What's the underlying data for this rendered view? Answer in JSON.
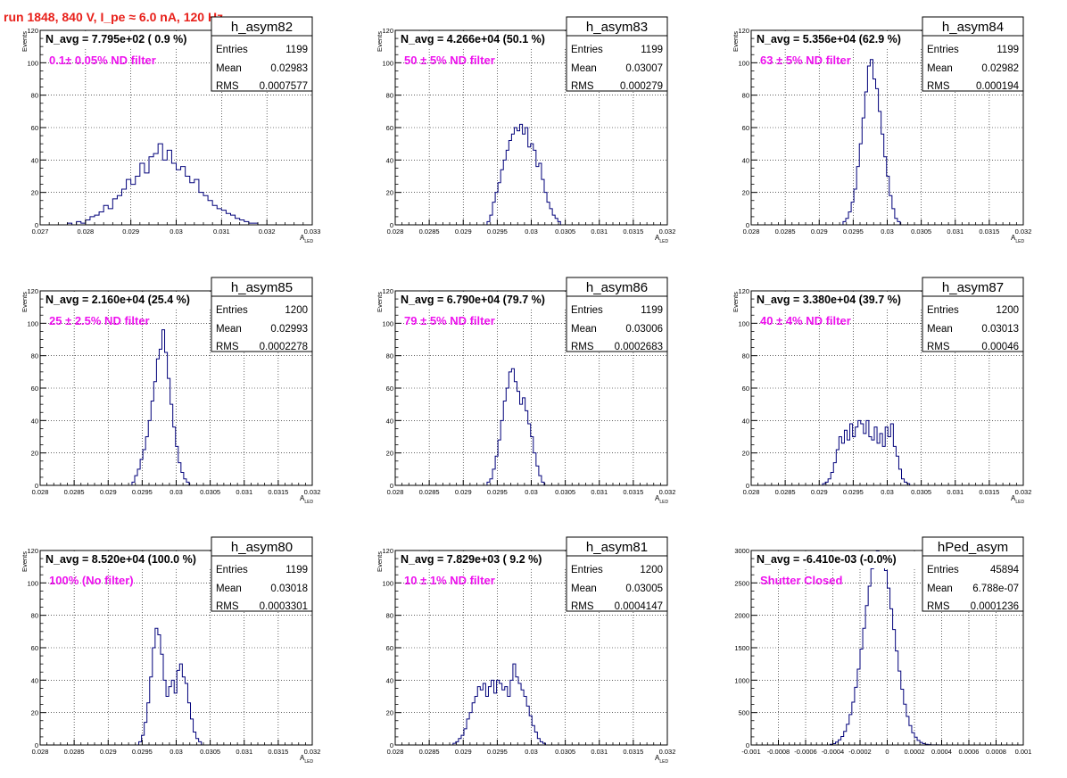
{
  "page_title": "run 1848,   840 V, I_pe ≈ 6.0 nA, 120 Hz",
  "colors": {
    "title": "#e8201a",
    "annotation": "#ee11ee",
    "histogram": "#00007a",
    "grid": "#000000",
    "frame": "#000000"
  },
  "stat_labels": {
    "entries": "Entries",
    "mean": "Mean",
    "rms": "RMS"
  },
  "chart_data": [
    {
      "type": "histogram",
      "name": "h_asym82",
      "navg": "N_avg = 7.795e+02 ( 0.9 %)",
      "annotation": "0.1± 0.05% ND filter",
      "stats": {
        "entries": "1199",
        "mean": "0.02983",
        "rms": "0.0007577"
      },
      "ylabel": "Events",
      "xlabel": "A",
      "xlabel_sub": "LED",
      "xlim": [
        0.027,
        0.033
      ],
      "ylim": [
        0,
        120
      ],
      "grid": true,
      "xticks": [
        0.027,
        0.028,
        0.029,
        0.03,
        0.031,
        0.032,
        0.033
      ],
      "xticklabels": [
        "0.027",
        "0.028",
        "0.029",
        "0.03",
        "0.031",
        "0.032",
        "0.033"
      ],
      "yticks": [
        0,
        20,
        40,
        60,
        80,
        100,
        120
      ],
      "yticklabels": [
        "0",
        "20",
        "40",
        "60",
        "80",
        "100",
        "120"
      ],
      "bins": {
        "start": 0.0276,
        "width": 0.0001,
        "counts": [
          1,
          0,
          2,
          1,
          3,
          5,
          6,
          8,
          12,
          10,
          16,
          18,
          22,
          28,
          25,
          30,
          38,
          32,
          42,
          44,
          50,
          40,
          46,
          38,
          34,
          36,
          30,
          26,
          28,
          20,
          18,
          15,
          12,
          10,
          9,
          7,
          6,
          4,
          3,
          2,
          1,
          1
        ]
      }
    },
    {
      "type": "histogram",
      "name": "h_asym83",
      "navg": "N_avg = 4.266e+04 (50.1 %)",
      "annotation": "50 ± 5% ND filter",
      "stats": {
        "entries": "1199",
        "mean": "0.03007",
        "rms": "0.000279"
      },
      "ylabel": "Events",
      "xlabel": "A",
      "xlabel_sub": "LED",
      "xlim": [
        0.028,
        0.032
      ],
      "ylim": [
        0,
        120
      ],
      "grid": true,
      "xticks": [
        0.028,
        0.0285,
        0.029,
        0.0295,
        0.03,
        0.0305,
        0.031,
        0.0315,
        0.032
      ],
      "xticklabels": [
        "0.028",
        "0.0285",
        "0.029",
        "0.0295",
        "0.03",
        "0.0305",
        "0.031",
        "0.0315",
        "0.032"
      ],
      "yticks": [
        0,
        20,
        40,
        60,
        80,
        100,
        120
      ],
      "yticklabels": [
        "0",
        "20",
        "40",
        "60",
        "80",
        "100",
        "120"
      ],
      "bins": {
        "start": 0.02935,
        "width": 4e-05,
        "counts": [
          2,
          6,
          14,
          20,
          26,
          34,
          40,
          46,
          52,
          56,
          60,
          58,
          62,
          56,
          60,
          48,
          50,
          46,
          36,
          38,
          28,
          20,
          14,
          10,
          6,
          4,
          2
        ]
      }
    },
    {
      "type": "histogram",
      "name": "h_asym84",
      "navg": "N_avg = 5.356e+04 (62.9 %)",
      "annotation": "63 ± 5% ND filter",
      "stats": {
        "entries": "1199",
        "mean": "0.02982",
        "rms": "0.000194"
      },
      "ylabel": "Events",
      "xlabel": "A",
      "xlabel_sub": "LED",
      "xlim": [
        0.028,
        0.032
      ],
      "ylim": [
        0,
        120
      ],
      "grid": true,
      "xticks": [
        0.028,
        0.0285,
        0.029,
        0.0295,
        0.03,
        0.0305,
        0.031,
        0.0315,
        0.032
      ],
      "xticklabels": [
        "0.028",
        "0.0285",
        "0.029",
        "0.0295",
        "0.03",
        "0.0305",
        "0.031",
        "0.0315",
        "0.032"
      ],
      "yticks": [
        0,
        20,
        40,
        60,
        80,
        100,
        120
      ],
      "yticklabels": [
        "0",
        "20",
        "40",
        "60",
        "80",
        "100",
        "120"
      ],
      "bins": {
        "start": 0.02935,
        "width": 4e-05,
        "counts": [
          2,
          4,
          8,
          14,
          22,
          36,
          50,
          66,
          82,
          98,
          102,
          90,
          84,
          70,
          56,
          42,
          30,
          18,
          10,
          4,
          2
        ]
      }
    },
    {
      "type": "histogram",
      "name": "h_asym85",
      "navg": "N_avg = 2.160e+04 (25.4 %)",
      "annotation": "25 ± 2.5% ND filter",
      "stats": {
        "entries": "1200",
        "mean": "0.02993",
        "rms": "0.0002278"
      },
      "ylabel": "Events",
      "xlabel": "A",
      "xlabel_sub": "LED",
      "xlim": [
        0.028,
        0.032
      ],
      "ylim": [
        0,
        120
      ],
      "grid": true,
      "xticks": [
        0.028,
        0.0285,
        0.029,
        0.0295,
        0.03,
        0.0305,
        0.031,
        0.0315,
        0.032
      ],
      "xticklabels": [
        "0.028",
        "0.0285",
        "0.029",
        "0.0295",
        "0.03",
        "0.0305",
        "0.031",
        "0.0315",
        "0.032"
      ],
      "yticks": [
        0,
        20,
        40,
        60,
        80,
        100,
        120
      ],
      "yticklabels": [
        "0",
        "20",
        "40",
        "60",
        "80",
        "100",
        "120"
      ],
      "bins": {
        "start": 0.02935,
        "width": 4e-05,
        "counts": [
          2,
          6,
          10,
          16,
          22,
          30,
          40,
          52,
          64,
          78,
          84,
          96,
          82,
          66,
          50,
          36,
          24,
          14,
          8,
          4,
          2
        ]
      }
    },
    {
      "type": "histogram",
      "name": "h_asym86",
      "navg": "N_avg = 6.790e+04 (79.7 %)",
      "annotation": "79 ± 5% ND filter",
      "stats": {
        "entries": "1199",
        "mean": "0.03006",
        "rms": "0.0002683"
      },
      "ylabel": "Events",
      "xlabel": "A",
      "xlabel_sub": "LED",
      "xlim": [
        0.028,
        0.032
      ],
      "ylim": [
        0,
        120
      ],
      "grid": true,
      "xticks": [
        0.028,
        0.0285,
        0.029,
        0.0295,
        0.03,
        0.0305,
        0.031,
        0.0315,
        0.032
      ],
      "xticklabels": [
        "0.028",
        "0.0285",
        "0.029",
        "0.0295",
        "0.03",
        "0.0305",
        "0.031",
        "0.0315",
        "0.032"
      ],
      "yticks": [
        0,
        20,
        40,
        60,
        80,
        100,
        120
      ],
      "yticklabels": [
        "0",
        "20",
        "40",
        "60",
        "80",
        "100",
        "120"
      ],
      "bins": {
        "start": 0.02935,
        "width": 4e-05,
        "counts": [
          2,
          4,
          10,
          18,
          28,
          40,
          52,
          60,
          70,
          72,
          64,
          58,
          50,
          54,
          46,
          38,
          30,
          20,
          12,
          6,
          2
        ]
      }
    },
    {
      "type": "histogram",
      "name": "h_asym87",
      "navg": "N_avg = 3.380e+04 (39.7 %)",
      "annotation": "40 ± 4% ND filter",
      "stats": {
        "entries": "1200",
        "mean": "0.03013",
        "rms": "0.00046"
      },
      "ylabel": "Events",
      "xlabel": "A",
      "xlabel_sub": "LED",
      "xlim": [
        0.028,
        0.032
      ],
      "ylim": [
        0,
        120
      ],
      "grid": true,
      "xticks": [
        0.028,
        0.0285,
        0.029,
        0.0295,
        0.03,
        0.0305,
        0.031,
        0.0315,
        0.032
      ],
      "xticklabels": [
        "0.028",
        "0.0285",
        "0.029",
        "0.0295",
        "0.03",
        "0.0305",
        "0.031",
        "0.0315",
        "0.032"
      ],
      "yticks": [
        0,
        20,
        40,
        60,
        80,
        100,
        120
      ],
      "yticklabels": [
        "0",
        "20",
        "40",
        "60",
        "80",
        "100",
        "120"
      ],
      "bins": {
        "start": 0.02905,
        "width": 4e-05,
        "counts": [
          1,
          2,
          4,
          8,
          14,
          22,
          30,
          26,
          34,
          28,
          38,
          30,
          36,
          40,
          38,
          32,
          40,
          30,
          28,
          36,
          26,
          32,
          24,
          36,
          30,
          38,
          24,
          18,
          10,
          4,
          2,
          1
        ]
      }
    },
    {
      "type": "histogram",
      "name": "h_asym80",
      "navg": "N_avg = 8.520e+04 (100.0 %)",
      "annotation": "100% (No filter)",
      "stats": {
        "entries": "1199",
        "mean": "0.03018",
        "rms": "0.0003301"
      },
      "ylabel": "Events",
      "xlabel": "A",
      "xlabel_sub": "LED",
      "xlim": [
        0.028,
        0.032
      ],
      "ylim": [
        0,
        120
      ],
      "grid": true,
      "xticks": [
        0.028,
        0.0285,
        0.029,
        0.0295,
        0.03,
        0.0305,
        0.031,
        0.0315,
        0.032
      ],
      "xticklabels": [
        "0.028",
        "0.0285",
        "0.029",
        "0.0295",
        "0.03",
        "0.0305",
        "0.031",
        "0.0315",
        "0.032"
      ],
      "yticks": [
        0,
        20,
        40,
        60,
        80,
        100,
        120
      ],
      "yticklabels": [
        "0",
        "20",
        "40",
        "60",
        "80",
        "100",
        "120"
      ],
      "bins": {
        "start": 0.02945,
        "width": 4e-05,
        "counts": [
          2,
          6,
          14,
          26,
          42,
          60,
          72,
          68,
          56,
          40,
          30,
          36,
          40,
          32,
          46,
          50,
          42,
          38,
          26,
          16,
          8,
          4,
          2
        ]
      }
    },
    {
      "type": "histogram",
      "name": "h_asym81",
      "navg": "N_avg = 7.829e+03 ( 9.2 %)",
      "annotation": "10 ± 1% ND filter",
      "stats": {
        "entries": "1200",
        "mean": "0.03005",
        "rms": "0.0004147"
      },
      "ylabel": "Events",
      "xlabel": "A",
      "xlabel_sub": "LED",
      "xlim": [
        0.028,
        0.032
      ],
      "ylim": [
        0,
        120
      ],
      "grid": true,
      "xticks": [
        0.028,
        0.0285,
        0.029,
        0.0295,
        0.03,
        0.0305,
        0.031,
        0.0315,
        0.032
      ],
      "xticklabels": [
        "0.028",
        "0.0285",
        "0.029",
        "0.0295",
        "0.03",
        "0.0305",
        "0.031",
        "0.0315",
        "0.032"
      ],
      "yticks": [
        0,
        20,
        40,
        60,
        80,
        100,
        120
      ],
      "yticklabels": [
        "0",
        "20",
        "40",
        "60",
        "80",
        "100",
        "120"
      ],
      "bins": {
        "start": 0.02885,
        "width": 4e-05,
        "counts": [
          1,
          2,
          4,
          6,
          10,
          16,
          20,
          26,
          30,
          36,
          34,
          38,
          30,
          36,
          40,
          32,
          40,
          38,
          34,
          36,
          30,
          40,
          50,
          42,
          38,
          34,
          30,
          24,
          18,
          12,
          8,
          4,
          2,
          1
        ]
      }
    },
    {
      "type": "histogram",
      "name": "hPed_asym",
      "navg": "N_avg = -6.410e-03 (-0.0%)",
      "annotation": "Shutter Closed",
      "stats": {
        "entries": "45894",
        "mean": "6.788e-07",
        "rms": "0.0001236"
      },
      "ylabel": "",
      "xlabel": "",
      "xlabel_sub": "",
      "xlim": [
        -0.001,
        0.001
      ],
      "ylim": [
        0,
        3000
      ],
      "grid": true,
      "xticks": [
        -0.001,
        -0.0008,
        -0.0006,
        -0.0004,
        -0.0002,
        0,
        0.0002,
        0.0004,
        0.0006,
        0.0008,
        0.001
      ],
      "xticklabels": [
        "-0.001",
        "-0.0008",
        "-0.0006",
        "-0.0004",
        "-0.0002",
        "0",
        "0.0002",
        "0.0004",
        "0.0006",
        "0.0008",
        "0.001"
      ],
      "yticks": [
        0,
        500,
        1000,
        1500,
        2000,
        2500,
        3000
      ],
      "yticklabels": [
        "0",
        "500",
        "1000",
        "1500",
        "2000",
        "2500",
        "3000"
      ],
      "bins": {
        "start": -0.00042,
        "width": 2e-05,
        "counts": [
          10,
          20,
          45,
          80,
          130,
          210,
          320,
          470,
          660,
          890,
          1170,
          1480,
          1800,
          2150,
          2450,
          2720,
          2900,
          2990,
          2980,
          2880,
          2690,
          2420,
          2100,
          1780,
          1450,
          1140,
          860,
          630,
          440,
          300,
          190,
          120,
          70,
          40,
          20,
          10,
          5,
          2,
          1,
          1
        ]
      }
    }
  ]
}
